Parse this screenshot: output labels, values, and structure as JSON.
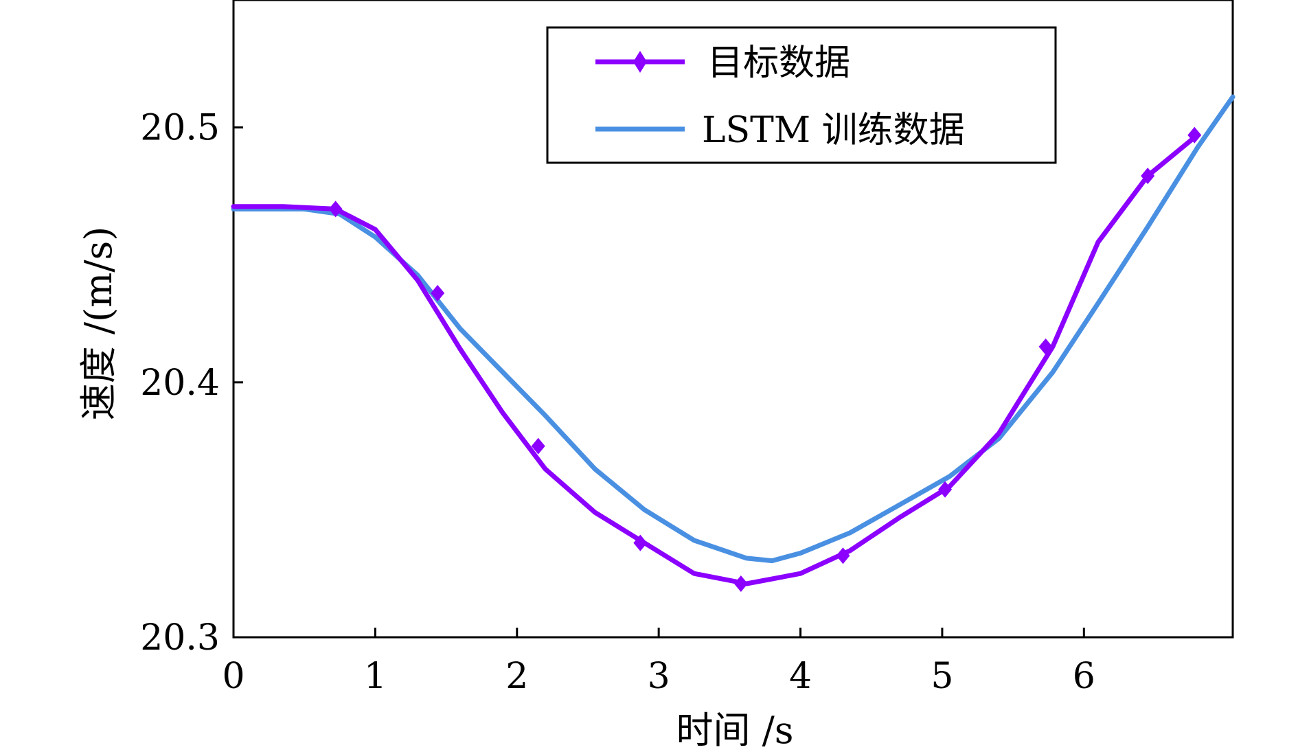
{
  "chart_data": {
    "type": "line",
    "title": "",
    "xlabel": "时间 /s",
    "ylabel": "速度 /(m/s)",
    "xlim": [
      0,
      7.05
    ],
    "ylim": [
      20.3,
      20.55
    ],
    "x_ticks": [
      0,
      1,
      2,
      3,
      4,
      5,
      6
    ],
    "y_ticks": [
      20.3,
      20.4,
      20.5
    ],
    "grid": false,
    "legend_position": "top-right",
    "series": [
      {
        "name": "目标数据",
        "color": "#8B00FF",
        "marker": "diamond",
        "x": [
          0,
          0.35,
          0.72,
          1.0,
          1.3,
          1.6,
          1.9,
          2.2,
          2.55,
          2.9,
          3.25,
          3.62,
          4.0,
          4.35,
          4.7,
          5.05,
          5.4,
          5.78,
          6.1,
          6.45,
          6.8
        ],
        "y": [
          20.469,
          20.469,
          20.468,
          20.46,
          20.44,
          20.413,
          20.388,
          20.366,
          20.349,
          20.337,
          20.325,
          20.321,
          20.325,
          20.334,
          20.347,
          20.359,
          20.38,
          20.414,
          20.455,
          20.481,
          20.497
        ]
      },
      {
        "name": "LSTM 训练数据",
        "color": "#4A90E2",
        "marker": "none",
        "x": [
          0,
          0.5,
          0.75,
          1.0,
          1.3,
          1.6,
          1.9,
          2.2,
          2.55,
          2.9,
          3.25,
          3.62,
          3.8,
          4.0,
          4.35,
          4.7,
          5.05,
          5.4,
          5.78,
          6.1,
          6.45,
          6.8,
          7.05
        ],
        "y": [
          20.468,
          20.468,
          20.466,
          20.457,
          20.442,
          20.421,
          20.404,
          20.387,
          20.366,
          20.35,
          20.338,
          20.331,
          20.33,
          20.333,
          20.341,
          20.352,
          20.363,
          20.378,
          20.404,
          20.431,
          20.461,
          20.492,
          20.512
        ]
      }
    ],
    "markers": {
      "series_index": 0,
      "x": [
        0.72,
        1.44,
        2.15,
        2.87,
        3.58,
        4.3,
        5.02,
        5.73,
        6.45,
        6.78
      ],
      "y": [
        20.468,
        20.435,
        20.375,
        20.337,
        20.321,
        20.332,
        20.358,
        20.414,
        20.481,
        20.497
      ]
    }
  }
}
